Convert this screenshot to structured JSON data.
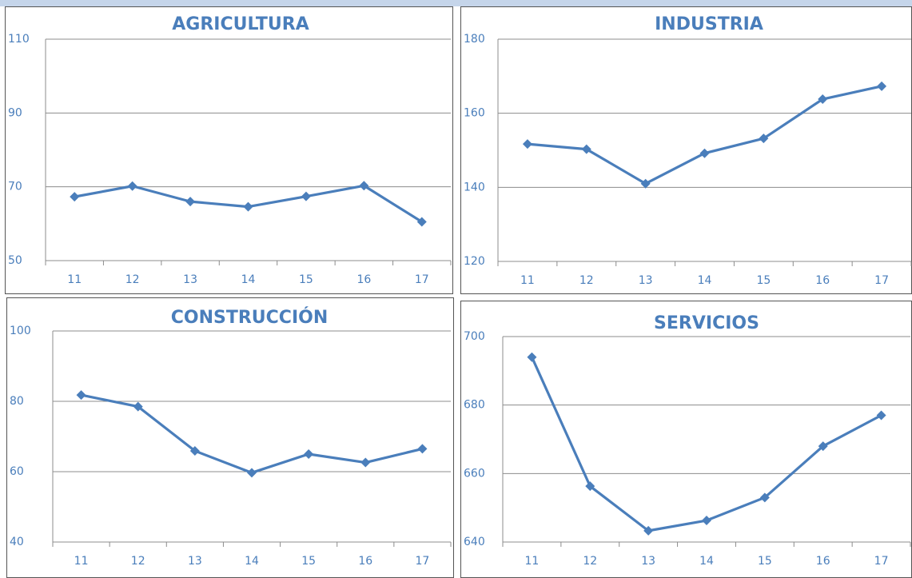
{
  "chart_data": [
    {
      "type": "line",
      "title": "AGRICULTURA",
      "categories": [
        "11",
        "12",
        "13",
        "14",
        "15",
        "16",
        "17"
      ],
      "series": [
        {
          "name": null,
          "color": "#4a7ebb",
          "values": [
            67.3,
            70.2,
            66.0,
            64.6,
            67.4,
            70.3,
            60.5
          ]
        }
      ],
      "ylim": [
        50,
        110
      ],
      "yticks": [
        50,
        70,
        90,
        110
      ],
      "grid": true
    },
    {
      "type": "line",
      "title": "INDUSTRIA",
      "categories": [
        "11",
        "12",
        "13",
        "14",
        "15",
        "16",
        "17"
      ],
      "series": [
        {
          "name": null,
          "color": "#4a7ebb",
          "values": [
            151.7,
            150.3,
            141.0,
            149.2,
            153.2,
            163.8,
            167.3
          ]
        }
      ],
      "ylim": [
        120,
        180
      ],
      "yticks": [
        120,
        140,
        160,
        180
      ],
      "grid": true
    },
    {
      "type": "line",
      "title": "CONSTRUCCIÓN",
      "categories": [
        "11",
        "12",
        "13",
        "14",
        "15",
        "16",
        "17"
      ],
      "series": [
        {
          "name": null,
          "color": "#4a7ebb",
          "values": [
            81.8,
            78.5,
            65.9,
            59.7,
            65.0,
            62.6,
            66.5
          ]
        }
      ],
      "ylim": [
        40,
        100
      ],
      "yticks": [
        40,
        60,
        80,
        100
      ],
      "grid": true
    },
    {
      "type": "line",
      "title": "SERVICIOS",
      "categories": [
        "11",
        "12",
        "13",
        "14",
        "15",
        "16",
        "17"
      ],
      "series": [
        {
          "name": null,
          "color": "#4a7ebb",
          "values": [
            694.0,
            656.3,
            643.3,
            646.3,
            653.0,
            668.0,
            677.0
          ]
        }
      ],
      "ylim": [
        640,
        700
      ],
      "yticks": [
        640,
        660,
        680,
        700
      ],
      "grid": true
    }
  ]
}
